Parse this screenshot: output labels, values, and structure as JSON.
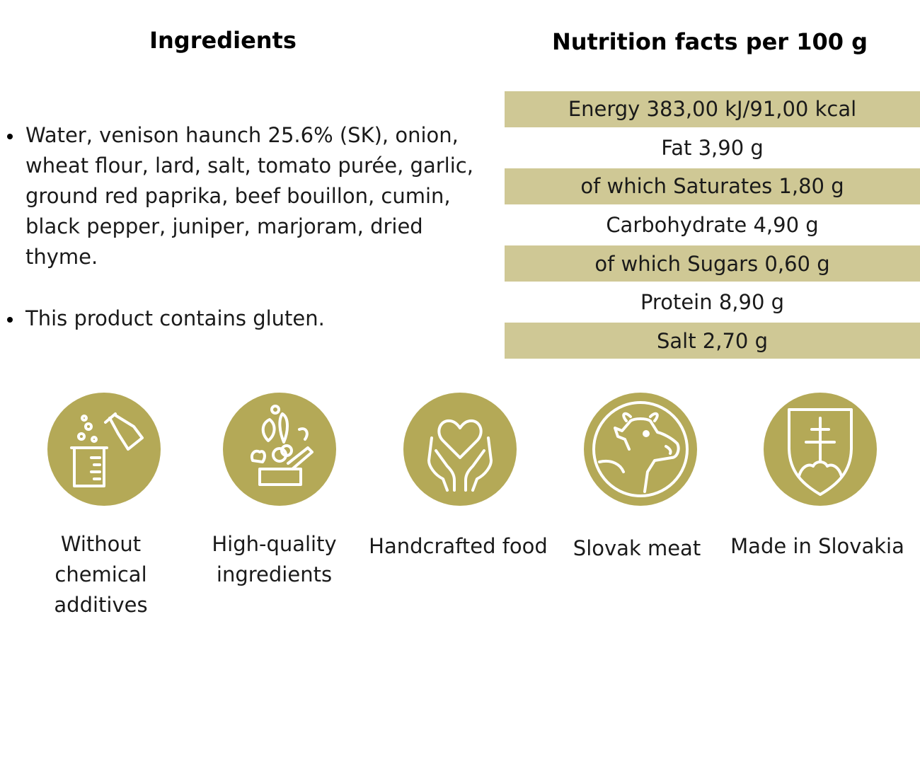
{
  "ingredients": {
    "title": "Ingredients",
    "items": [
      "Water, venison haunch 25.6% (SK), onion, wheat flour, lard, salt, tomato purée, garlic, ground red paprika, beef bouillon, cumin, black pepper, juniper, marjoram, dried thyme.",
      "This product contains gluten."
    ]
  },
  "nutrition": {
    "title": "Nutrition facts per 100 g",
    "rows": [
      "Energy 383,00 kJ/91,00 kcal",
      "Fat 3,90 g",
      "of which Saturates 1,80 g",
      "Carbohydrate 4,90 g",
      "of which Sugars 0,60 g",
      "Protein 8,90 g",
      "Salt 2,70 g"
    ]
  },
  "badges": [
    {
      "icon": "lab-flask-icon",
      "label": "Without chemical additives"
    },
    {
      "icon": "vegetables-icon",
      "label": "High-quality ingredients"
    },
    {
      "icon": "heart-hands-icon",
      "label": "Handcrafted food"
    },
    {
      "icon": "cow-icon",
      "label": "Slovak meat"
    },
    {
      "icon": "slovak-shield-icon",
      "label": "Made in Slovakia"
    }
  ],
  "colors": {
    "badge": "#b4a957",
    "row_shade": "#cfc895",
    "icon_line": "#ffffff"
  }
}
